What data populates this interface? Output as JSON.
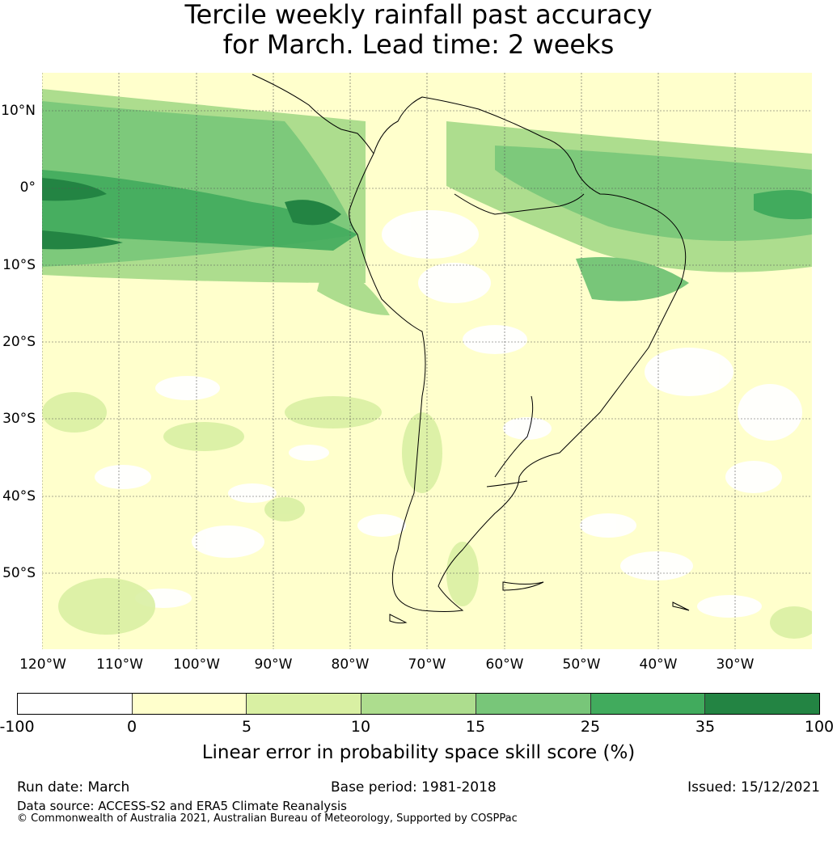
{
  "title": {
    "line1": "Tercile weekly rainfall past accuracy",
    "line2": "for March. Lead time: 2 weeks"
  },
  "map": {
    "lat_labels": [
      "10°N",
      "0°",
      "10°S",
      "20°S",
      "30°S",
      "40°S",
      "50°S"
    ],
    "lon_labels": [
      "120°W",
      "110°W",
      "100°W",
      "90°W",
      "80°W",
      "70°W",
      "60°W",
      "50°W",
      "40°W",
      "30°W"
    ]
  },
  "colorbar": {
    "colors": [
      "#ffffff",
      "#ffffcc",
      "#d9f0a3",
      "#addd8e",
      "#78c679",
      "#41ab5d",
      "#238443"
    ],
    "ticks": [
      "-100",
      "0",
      "5",
      "10",
      "15",
      "25",
      "35",
      "100"
    ],
    "label": "Linear error in probability space skill score (%)"
  },
  "footer": {
    "run_date": "Run date: March",
    "base_period": "Base period: 1981-2018",
    "issued": "Issued: 15/12/2021",
    "data_source": "Data source: ACCESS-S2 and ERA5 Climate Reanalysis",
    "copyright": "© Commonwealth of Australia 2021, Australian Bureau of Meteorology, Supported by COSPPac"
  }
}
